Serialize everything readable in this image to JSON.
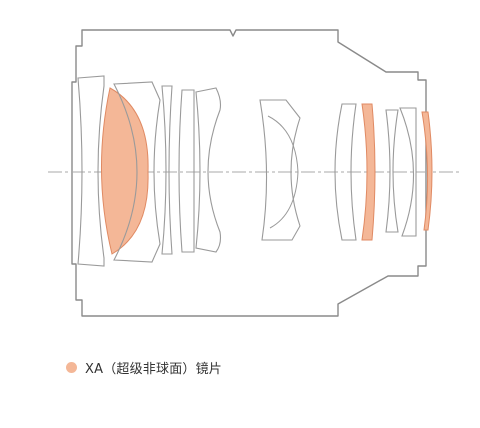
{
  "colors": {
    "outline": "#8a8a8a",
    "lens_stroke": "#9a9a9a",
    "xa_fill": "#f4b797",
    "xa_stroke": "#e08a63",
    "axis": "#aaaaaa"
  },
  "legend": {
    "marker_color": "#f4b797",
    "label": "XA（超级非球面）镜片"
  }
}
